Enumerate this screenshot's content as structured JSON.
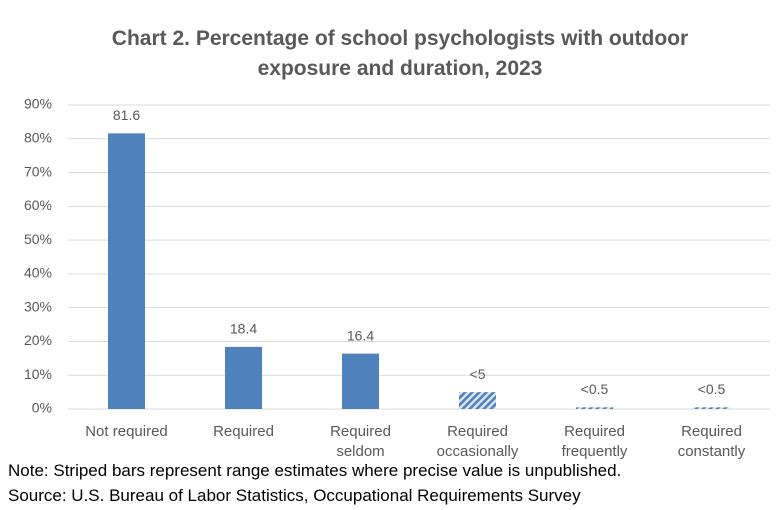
{
  "chart_data": {
    "type": "bar",
    "title": "Chart 2. Percentage of school psychologists with outdoor exposure and duration, 2023",
    "categories": [
      "Not required",
      "Required",
      "Required seldom",
      "Required occasionally",
      "Required frequently",
      "Required constantly"
    ],
    "values": [
      81.6,
      18.4,
      16.4,
      5,
      0.5,
      0.5
    ],
    "value_labels": [
      "81.6",
      "18.4",
      "16.4",
      "<5",
      "<0.5",
      "<0.5"
    ],
    "striped": [
      false,
      false,
      false,
      true,
      true,
      true
    ],
    "color": "#4f81bd",
    "ylim": [
      0,
      90
    ],
    "yticks": [
      {
        "value": 0,
        "label": "0%"
      },
      {
        "value": 10,
        "label": "10%"
      },
      {
        "value": 20,
        "label": "20%"
      },
      {
        "value": 30,
        "label": "30%"
      },
      {
        "value": 40,
        "label": "40%"
      },
      {
        "value": 50,
        "label": "50%"
      },
      {
        "value": 60,
        "label": "60%"
      },
      {
        "value": 70,
        "label": "70%"
      },
      {
        "value": 80,
        "label": "80%"
      },
      {
        "value": 90,
        "label": "90%"
      }
    ],
    "grid": true,
    "note": "Note: Striped bars represent range estimates where precise value is unpublished.",
    "source": "Source: U.S. Bureau of Labor Statistics, Occupational Requirements Survey"
  }
}
